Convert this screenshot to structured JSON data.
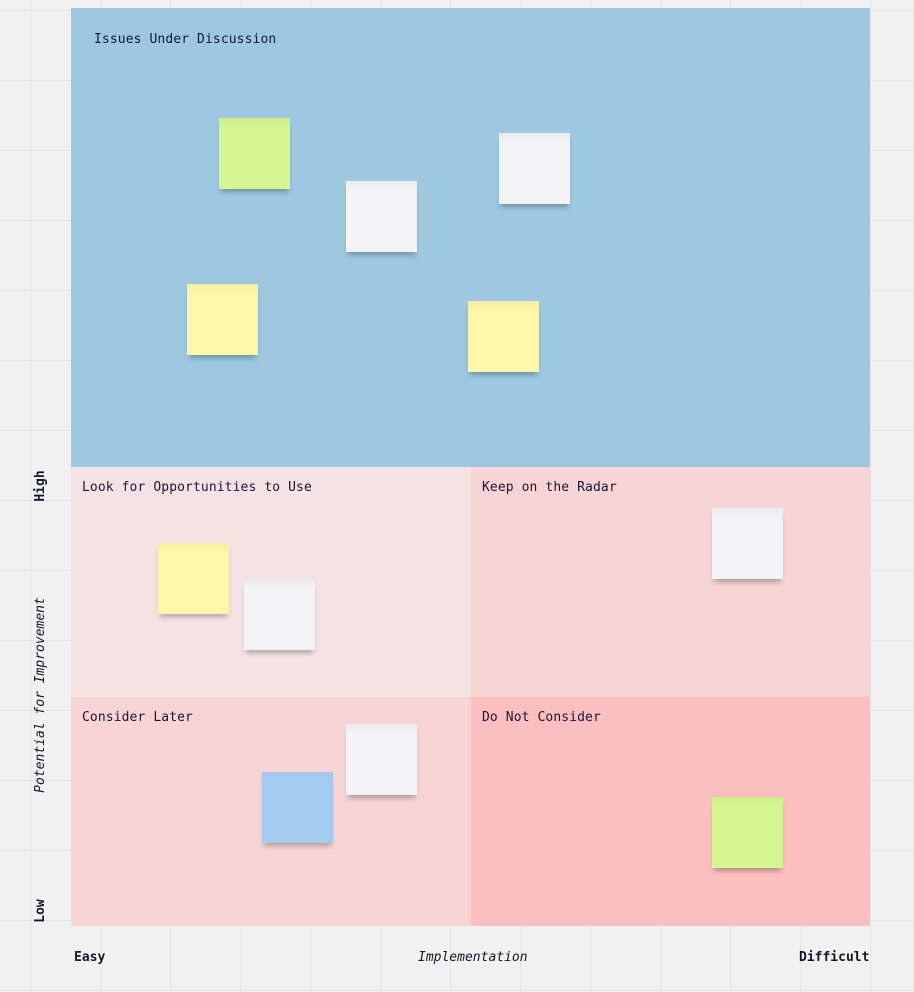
{
  "board": {
    "zones": {
      "top": {
        "title": "Issues Under Discussion",
        "color": "#9dc8e0"
      },
      "top_left": {
        "title": "Look for Opportunities to Use",
        "color": "#f5e3e4"
      },
      "top_right": {
        "title": "Keep on the Radar",
        "color": "#f8d4d5"
      },
      "bottom_left": {
        "title": "Consider Later",
        "color": "#f8d4d5"
      },
      "bottom_right": {
        "title": "Do Not Consider",
        "color": "#fcbfbf"
      }
    },
    "sticky_colors": {
      "green": "#d5f691",
      "white": "#f3f3f5",
      "yellow": "#fef6a8",
      "blue": "#a6cbf3"
    }
  },
  "axes": {
    "y": {
      "high": "High",
      "low": "Low",
      "title": "Potential for Improvement"
    },
    "x": {
      "easy": "Easy",
      "title": "Implementation",
      "difficult": "Difficult"
    }
  }
}
